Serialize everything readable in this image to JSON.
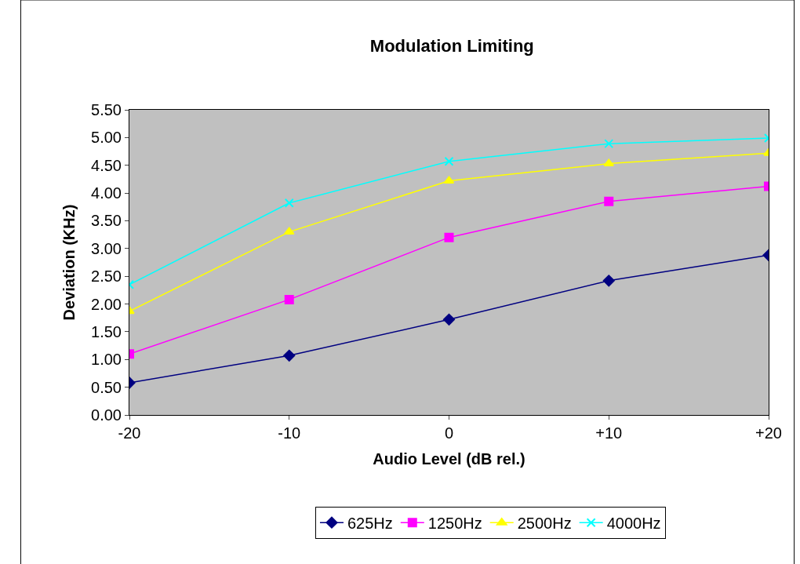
{
  "chart_data": {
    "type": "line",
    "title": "Modulation Limiting",
    "xlabel": "Audio Level (dB rel.)",
    "ylabel": "Deviation (KHz)",
    "categories": [
      "-20",
      "-10",
      "0",
      "+10",
      "+20"
    ],
    "series": [
      {
        "name": "625Hz",
        "color": "#000080",
        "marker": "diamond",
        "values": [
          0.58,
          1.07,
          1.72,
          2.42,
          2.88
        ]
      },
      {
        "name": "1250Hz",
        "color": "#ff00ff",
        "marker": "square",
        "values": [
          1.1,
          2.08,
          3.2,
          3.85,
          4.12
        ]
      },
      {
        "name": "2500Hz",
        "color": "#ffff00",
        "marker": "triangle",
        "values": [
          1.87,
          3.3,
          4.22,
          4.53,
          4.72
        ]
      },
      {
        "name": "4000Hz",
        "color": "#00ffff",
        "marker": "cross",
        "values": [
          2.35,
          3.82,
          4.57,
          4.89,
          4.99
        ]
      }
    ],
    "ylim": [
      0,
      5.5
    ],
    "yticks": [
      {
        "value": 0,
        "label": "0.00"
      },
      {
        "value": 0.5,
        "label": "0.50"
      },
      {
        "value": 1,
        "label": "1.00"
      },
      {
        "value": 1.5,
        "label": "1.50"
      },
      {
        "value": 2,
        "label": "2.00"
      },
      {
        "value": 2.5,
        "label": "2.50"
      },
      {
        "value": 3,
        "label": "3.00"
      },
      {
        "value": 3.5,
        "label": "3.50"
      },
      {
        "value": 4,
        "label": "4.00"
      },
      {
        "value": 4.5,
        "label": "4.50"
      },
      {
        "value": 5,
        "label": "5.00"
      },
      {
        "value": 5.5,
        "label": "5.50"
      }
    ],
    "grid": false,
    "legend": "bottom",
    "line_style": "solid"
  }
}
